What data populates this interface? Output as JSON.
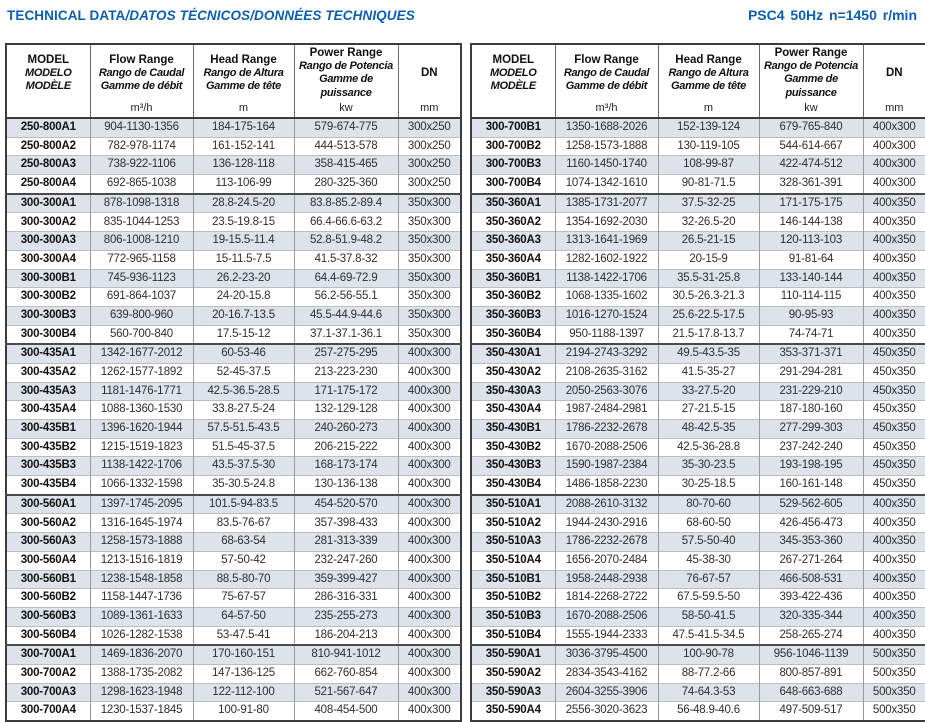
{
  "titlebar": {
    "title_en": "TECHNICAL DATA",
    "title_i18n": "/DATOS TÉCNICOS/DONNÉES TECHNIQUES",
    "spec": "PSC4 50Hz n=1450 r/min"
  },
  "colors": {
    "accent_blue": "#0d5eae",
    "row_stripe": "#dce3eb",
    "border_dark": "#3c3c3c",
    "border_light": "#bdbdbd"
  },
  "columns": {
    "model": {
      "lines": [
        "MODEL",
        "MODELO",
        "MODÈLE"
      ],
      "unit": ""
    },
    "flow": {
      "lines": [
        "Flow Range",
        "Rango de Caudal",
        "Gamme de débit"
      ],
      "unit": "m³/h"
    },
    "head": {
      "lines": [
        "Head Range",
        "Rango de Altura",
        "Gamme de tête"
      ],
      "unit": "m"
    },
    "power": {
      "lines": [
        "Power Range",
        "Rango de Potencia",
        "Gamme de puissance"
      ],
      "unit": "kw"
    },
    "dn": {
      "lines": [
        "DN"
      ],
      "unit": "mm"
    }
  },
  "tables": [
    {
      "rows": [
        {
          "model": "250-800A1",
          "flow": "904-1130-1356",
          "head": "184-175-164",
          "power": "579-674-775",
          "dn": "300x250"
        },
        {
          "model": "250-800A2",
          "flow": "782-978-1174",
          "head": "161-152-141",
          "power": "444-513-578",
          "dn": "300x250"
        },
        {
          "model": "250-800A3",
          "flow": "738-922-1106",
          "head": "136-128-118",
          "power": "358-415-465",
          "dn": "300x250"
        },
        {
          "model": "250-800A4",
          "flow": "692-865-1038",
          "head": "113-106-99",
          "power": "280-325-360",
          "dn": "300x250"
        },
        {
          "model": "300-300A1",
          "flow": "878-1098-1318",
          "head": "28.8-24.5-20",
          "power": "83.8-85.2-89.4",
          "dn": "350x300"
        },
        {
          "model": "300-300A2",
          "flow": "835-1044-1253",
          "head": "23.5-19.8-15",
          "power": "66.4-66.6-63.2",
          "dn": "350x300"
        },
        {
          "model": "300-300A3",
          "flow": "806-1008-1210",
          "head": "19-15.5-11.4",
          "power": "52.8-51.9-48.2",
          "dn": "350x300"
        },
        {
          "model": "300-300A4",
          "flow": "772-965-1158",
          "head": "15-11.5-7.5",
          "power": "41.5-37.8-32",
          "dn": "350x300"
        },
        {
          "model": "300-300B1",
          "flow": "745-936-1123",
          "head": "26.2-23-20",
          "power": "64.4-69-72.9",
          "dn": "350x300"
        },
        {
          "model": "300-300B2",
          "flow": "691-864-1037",
          "head": "24-20-15.8",
          "power": "56.2-56-55.1",
          "dn": "350x300"
        },
        {
          "model": "300-300B3",
          "flow": "639-800-960",
          "head": "20-16.7-13.5",
          "power": "45.5-44.9-44.6",
          "dn": "350x300"
        },
        {
          "model": "300-300B4",
          "flow": "560-700-840",
          "head": "17.5-15-12",
          "power": "37.1-37.1-36.1",
          "dn": "350x300"
        },
        {
          "model": "300-435A1",
          "flow": "1342-1677-2012",
          "head": "60-53-46",
          "power": "257-275-295",
          "dn": "400x300"
        },
        {
          "model": "300-435A2",
          "flow": "1262-1577-1892",
          "head": "52-45-37.5",
          "power": "213-223-230",
          "dn": "400x300"
        },
        {
          "model": "300-435A3",
          "flow": "1181-1476-1771",
          "head": "42.5-36.5-28.5",
          "power": "171-175-172",
          "dn": "400x300"
        },
        {
          "model": "300-435A4",
          "flow": "1088-1360-1530",
          "head": "33.8-27.5-24",
          "power": "132-129-128",
          "dn": "400x300"
        },
        {
          "model": "300-435B1",
          "flow": "1396-1620-1944",
          "head": "57.5-51.5-43.5",
          "power": "240-260-273",
          "dn": "400x300"
        },
        {
          "model": "300-435B2",
          "flow": "1215-1519-1823",
          "head": "51.5-45-37.5",
          "power": "206-215-222",
          "dn": "400x300"
        },
        {
          "model": "300-435B3",
          "flow": "1138-1422-1706",
          "head": "43.5-37.5-30",
          "power": "168-173-174",
          "dn": "400x300"
        },
        {
          "model": "300-435B4",
          "flow": "1066-1332-1598",
          "head": "35-30.5-24.8",
          "power": "130-136-138",
          "dn": "400x300"
        },
        {
          "model": "300-560A1",
          "flow": "1397-1745-2095",
          "head": "101.5-94-83.5",
          "power": "454-520-570",
          "dn": "400x300"
        },
        {
          "model": "300-560A2",
          "flow": "1316-1645-1974",
          "head": "83.5-76-67",
          "power": "357-398-433",
          "dn": "400x300"
        },
        {
          "model": "300-560A3",
          "flow": "1258-1573-1888",
          "head": "68-63-54",
          "power": "281-313-339",
          "dn": "400x300"
        },
        {
          "model": "300-560A4",
          "flow": "1213-1516-1819",
          "head": "57-50-42",
          "power": "232-247-260",
          "dn": "400x300"
        },
        {
          "model": "300-560B1",
          "flow": "1238-1548-1858",
          "head": "88.5-80-70",
          "power": "359-399-427",
          "dn": "400x300"
        },
        {
          "model": "300-560B2",
          "flow": "1158-1447-1736",
          "head": "75-67-57",
          "power": "286-316-331",
          "dn": "400x300"
        },
        {
          "model": "300-560B3",
          "flow": "1089-1361-1633",
          "head": "64-57-50",
          "power": "235-255-273",
          "dn": "400x300"
        },
        {
          "model": "300-560B4",
          "flow": "1026-1282-1538",
          "head": "53-47.5-41",
          "power": "186-204-213",
          "dn": "400x300"
        },
        {
          "model": "300-700A1",
          "flow": "1469-1836-2070",
          "head": "170-160-151",
          "power": "810-941-1012",
          "dn": "400x300"
        },
        {
          "model": "300-700A2",
          "flow": "1388-1735-2082",
          "head": "147-136-125",
          "power": "662-760-854",
          "dn": "400x300"
        },
        {
          "model": "300-700A3",
          "flow": "1298-1623-1948",
          "head": "122-112-100",
          "power": "521-567-647",
          "dn": "400x300"
        },
        {
          "model": "300-700A4",
          "flow": "1230-1537-1845",
          "head": "100-91-80",
          "power": "408-454-500",
          "dn": "400x300"
        }
      ]
    },
    {
      "rows": [
        {
          "model": "300-700B1",
          "flow": "1350-1688-2026",
          "head": "152-139-124",
          "power": "679-765-840",
          "dn": "400x300"
        },
        {
          "model": "300-700B2",
          "flow": "1258-1573-1888",
          "head": "130-119-105",
          "power": "544-614-667",
          "dn": "400x300"
        },
        {
          "model": "300-700B3",
          "flow": "1160-1450-1740",
          "head": "108-99-87",
          "power": "422-474-512",
          "dn": "400x300"
        },
        {
          "model": "300-700B4",
          "flow": "1074-1342-1610",
          "head": "90-81-71.5",
          "power": "328-361-391",
          "dn": "400x300"
        },
        {
          "model": "350-360A1",
          "flow": "1385-1731-2077",
          "head": "37.5-32-25",
          "power": "171-175-175",
          "dn": "400x350"
        },
        {
          "model": "350-360A2",
          "flow": "1354-1692-2030",
          "head": "32-26.5-20",
          "power": "146-144-138",
          "dn": "400x350"
        },
        {
          "model": "350-360A3",
          "flow": "1313-1641-1969",
          "head": "26.5-21-15",
          "power": "120-113-103",
          "dn": "400x350"
        },
        {
          "model": "350-360A4",
          "flow": "1282-1602-1922",
          "head": "20-15-9",
          "power": "91-81-64",
          "dn": "400x350"
        },
        {
          "model": "350-360B1",
          "flow": "1138-1422-1706",
          "head": "35.5-31-25.8",
          "power": "133-140-144",
          "dn": "400x350"
        },
        {
          "model": "350-360B2",
          "flow": "1068-1335-1602",
          "head": "30.5-26.3-21.3",
          "power": "110-114-115",
          "dn": "400x350"
        },
        {
          "model": "350-360B3",
          "flow": "1016-1270-1524",
          "head": "25.6-22.5-17.5",
          "power": "90-95-93",
          "dn": "400x350"
        },
        {
          "model": "350-360B4",
          "flow": "950-1188-1397",
          "head": "21.5-17.8-13.7",
          "power": "74-74-71",
          "dn": "400x350"
        },
        {
          "model": "350-430A1",
          "flow": "2194-2743-3292",
          "head": "49.5-43.5-35",
          "power": "353-371-371",
          "dn": "450x350"
        },
        {
          "model": "350-430A2",
          "flow": "2108-2635-3162",
          "head": "41.5-35-27",
          "power": "291-294-281",
          "dn": "450x350"
        },
        {
          "model": "350-430A3",
          "flow": "2050-2563-3076",
          "head": "33-27.5-20",
          "power": "231-229-210",
          "dn": "450x350"
        },
        {
          "model": "350-430A4",
          "flow": "1987-2484-2981",
          "head": "27-21.5-15",
          "power": "187-180-160",
          "dn": "450x350"
        },
        {
          "model": "350-430B1",
          "flow": "1786-2232-2678",
          "head": "48-42.5-35",
          "power": "277-299-303",
          "dn": "450x350"
        },
        {
          "model": "350-430B2",
          "flow": "1670-2088-2506",
          "head": "42.5-36-28.8",
          "power": "237-242-240",
          "dn": "450x350"
        },
        {
          "model": "350-430B3",
          "flow": "1590-1987-2384",
          "head": "35-30-23.5",
          "power": "193-198-195",
          "dn": "450x350"
        },
        {
          "model": "350-430B4",
          "flow": "1486-1858-2230",
          "head": "30-25-18.5",
          "power": "160-161-148",
          "dn": "450x350"
        },
        {
          "model": "350-510A1",
          "flow": "2088-2610-3132",
          "head": "80-70-60",
          "power": "529-562-605",
          "dn": "400x350"
        },
        {
          "model": "350-510A2",
          "flow": "1944-2430-2916",
          "head": "68-60-50",
          "power": "426-456-473",
          "dn": "400x350"
        },
        {
          "model": "350-510A3",
          "flow": "1786-2232-2678",
          "head": "57.5-50-40",
          "power": "345-353-360",
          "dn": "400x350"
        },
        {
          "model": "350-510A4",
          "flow": "1656-2070-2484",
          "head": "45-38-30",
          "power": "267-271-264",
          "dn": "400x350"
        },
        {
          "model": "350-510B1",
          "flow": "1958-2448-2938",
          "head": "76-67-57",
          "power": "466-508-531",
          "dn": "400x350"
        },
        {
          "model": "350-510B2",
          "flow": "1814-2268-2722",
          "head": "67.5-59.5-50",
          "power": "393-422-436",
          "dn": "400x350"
        },
        {
          "model": "350-510B3",
          "flow": "1670-2088-2506",
          "head": "58-50-41.5",
          "power": "320-335-344",
          "dn": "400x350"
        },
        {
          "model": "350-510B4",
          "flow": "1555-1944-2333",
          "head": "47.5-41.5-34.5",
          "power": "258-265-274",
          "dn": "400x350"
        },
        {
          "model": "350-590A1",
          "flow": "3036-3795-4500",
          "head": "100-90-78",
          "power": "956-1046-1139",
          "dn": "500x350"
        },
        {
          "model": "350-590A2",
          "flow": "2834-3543-4162",
          "head": "88-77.2-66",
          "power": "800-857-891",
          "dn": "500x350"
        },
        {
          "model": "350-590A3",
          "flow": "2604-3255-3906",
          "head": "74-64.3-53",
          "power": "648-663-688",
          "dn": "500x350"
        },
        {
          "model": "350-590A4",
          "flow": "2556-3020-3623",
          "head": "56-48.9-40.6",
          "power": "497-509-517",
          "dn": "500x350"
        }
      ]
    }
  ]
}
